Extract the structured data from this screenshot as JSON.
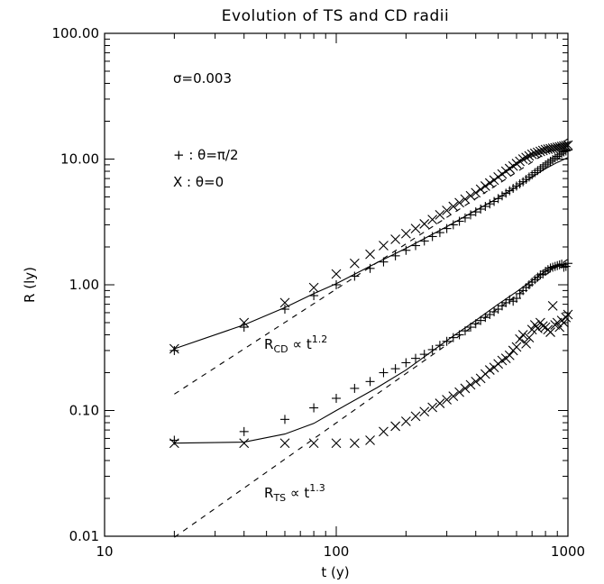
{
  "chart_data": {
    "type": "scatter",
    "title": "Evolution of TS and CD radii",
    "xlabel": "t (y)",
    "ylabel": "R (ly)",
    "xscale": "log",
    "yscale": "log",
    "xlim": [
      10,
      1000
    ],
    "ylim": [
      0.01,
      100
    ],
    "xticks": [
      "10",
      "100",
      "1000"
    ],
    "yticks": [
      "0.01",
      "0.10",
      "1.00",
      "10.00",
      "100.00"
    ],
    "annotations": {
      "sigma": "σ=0.003",
      "plus_legend": "+ : θ=π/2",
      "x_legend": "X : θ=0",
      "cd_fit_R": "R",
      "cd_fit_sub": "CD",
      "cd_fit_mid": " ∝ t",
      "cd_fit_exp": "1.2",
      "ts_fit_R": "R",
      "ts_fit_sub": "TS",
      "ts_fit_mid": " ∝ t",
      "ts_fit_exp": "1.3"
    },
    "series": [
      {
        "marker": "plus",
        "x": [
          20,
          40,
          60,
          80,
          100,
          120,
          140,
          160,
          180,
          200,
          220,
          240,
          260,
          280,
          300,
          320,
          340,
          360,
          380,
          400,
          420,
          440,
          460,
          480,
          500,
          520,
          540,
          560,
          580,
          600,
          620,
          640,
          660,
          680,
          700,
          720,
          740,
          760,
          780,
          800,
          820,
          840,
          860,
          880,
          900,
          920,
          940,
          960,
          980,
          1000
        ],
        "y": [
          0.3,
          0.46,
          0.64,
          0.82,
          1.0,
          1.17,
          1.35,
          1.52,
          1.7,
          1.88,
          2.05,
          2.23,
          2.42,
          2.6,
          2.8,
          3.0,
          3.2,
          3.4,
          3.6,
          3.8,
          4.0,
          4.2,
          4.4,
          4.6,
          4.85,
          5.1,
          5.35,
          5.6,
          5.85,
          6.1,
          6.35,
          6.6,
          6.9,
          7.2,
          7.5,
          7.8,
          8.1,
          8.4,
          8.7,
          9.0,
          9.3,
          9.6,
          9.9,
          10.2,
          10.5,
          10.8,
          11.1,
          11.4,
          11.6,
          11.8
        ]
      },
      {
        "marker": "x",
        "x": [
          20,
          40,
          60,
          80,
          100,
          120,
          140,
          160,
          180,
          200,
          220,
          240,
          260,
          280,
          300,
          320,
          340,
          360,
          380,
          400,
          420,
          440,
          460,
          480,
          500,
          520,
          540,
          560,
          580,
          600,
          620,
          640,
          660,
          680,
          700,
          720,
          740,
          760,
          780,
          800,
          820,
          840,
          860,
          880,
          900,
          920,
          940,
          960,
          980,
          1000
        ],
        "y": [
          0.31,
          0.5,
          0.72,
          0.95,
          1.22,
          1.48,
          1.75,
          2.05,
          2.3,
          2.55,
          2.8,
          3.05,
          3.3,
          3.6,
          3.9,
          4.2,
          4.5,
          4.8,
          5.1,
          5.4,
          5.75,
          6.1,
          6.45,
          6.8,
          7.2,
          7.6,
          8.0,
          8.4,
          8.8,
          9.2,
          9.6,
          10.0,
          10.3,
          10.6,
          10.9,
          11.1,
          11.3,
          11.5,
          11.7,
          11.9,
          12.0,
          12.1,
          12.2,
          12.3,
          12.4,
          12.5,
          12.6,
          12.7,
          12.8,
          12.9
        ]
      },
      {
        "marker": "plus",
        "x": [
          20,
          40,
          60,
          80,
          100,
          120,
          140,
          160,
          180,
          200,
          220,
          240,
          260,
          280,
          300,
          320,
          340,
          360,
          380,
          400,
          420,
          440,
          460,
          480,
          500,
          520,
          540,
          560,
          580,
          600,
          620,
          640,
          660,
          680,
          700,
          720,
          740,
          760,
          780,
          800,
          820,
          840,
          860,
          880,
          900,
          920,
          940,
          960,
          980,
          1000
        ],
        "y": [
          0.058,
          0.068,
          0.085,
          0.105,
          0.125,
          0.15,
          0.17,
          0.2,
          0.215,
          0.24,
          0.26,
          0.28,
          0.305,
          0.33,
          0.355,
          0.38,
          0.4,
          0.43,
          0.46,
          0.49,
          0.52,
          0.55,
          0.58,
          0.61,
          0.64,
          0.68,
          0.72,
          0.76,
          0.74,
          0.78,
          0.85,
          0.9,
          0.95,
          1.0,
          1.05,
          1.1,
          1.15,
          1.2,
          1.22,
          1.28,
          1.32,
          1.36,
          1.38,
          1.4,
          1.42,
          1.44,
          1.46,
          1.38,
          1.4,
          1.48
        ]
      },
      {
        "marker": "x",
        "x": [
          20,
          40,
          60,
          80,
          100,
          120,
          140,
          160,
          180,
          200,
          220,
          240,
          260,
          280,
          300,
          320,
          340,
          360,
          380,
          400,
          420,
          440,
          460,
          480,
          500,
          520,
          540,
          560,
          580,
          600,
          620,
          640,
          660,
          680,
          700,
          720,
          740,
          760,
          780,
          800,
          820,
          840,
          860,
          880,
          900,
          920,
          940,
          960,
          980,
          1000
        ],
        "y": [
          0.055,
          0.055,
          0.055,
          0.055,
          0.055,
          0.055,
          0.058,
          0.068,
          0.075,
          0.082,
          0.09,
          0.098,
          0.106,
          0.114,
          0.122,
          0.13,
          0.14,
          0.15,
          0.16,
          0.17,
          0.18,
          0.195,
          0.21,
          0.22,
          0.235,
          0.25,
          0.26,
          0.275,
          0.3,
          0.32,
          0.37,
          0.4,
          0.34,
          0.38,
          0.44,
          0.48,
          0.45,
          0.5,
          0.47,
          0.46,
          0.44,
          0.42,
          0.68,
          0.48,
          0.5,
          0.46,
          0.52,
          0.5,
          0.55,
          0.58
        ]
      },
      {
        "style": "solid",
        "x": [
          20,
          40,
          60,
          80,
          100,
          150,
          200,
          300,
          400,
          500,
          600,
          700,
          800,
          900,
          1000
        ],
        "y": [
          0.31,
          0.48,
          0.66,
          0.85,
          1.02,
          1.5,
          1.95,
          2.9,
          3.9,
          4.9,
          6.0,
          7.2,
          8.4,
          9.4,
          10.3
        ]
      },
      {
        "style": "solid",
        "x": [
          20,
          40,
          60,
          80,
          100,
          150,
          200,
          300,
          400,
          500,
          600,
          700,
          800,
          900,
          1000
        ],
        "y": [
          0.055,
          0.056,
          0.065,
          0.079,
          0.1,
          0.152,
          0.21,
          0.36,
          0.52,
          0.7,
          0.88,
          1.08,
          1.28,
          1.4,
          1.45
        ]
      },
      {
        "style": "dashed",
        "x": [
          20,
          1000
        ],
        "y": [
          0.135,
          14.5
        ]
      },
      {
        "style": "dashed",
        "x": [
          20,
          1000
        ],
        "y": [
          0.0098,
          1.6
        ]
      }
    ]
  }
}
